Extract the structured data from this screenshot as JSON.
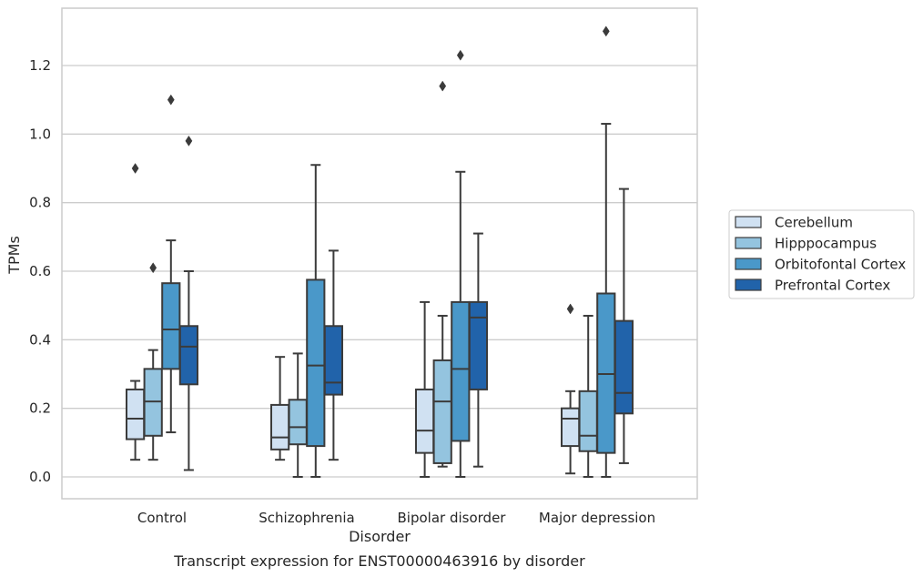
{
  "caption": "Transcript expression for ENST00000463916 by disorder",
  "chart_data": {
    "type": "box",
    "title": "",
    "xlabel": "Disorder",
    "ylabel": "TPMs",
    "ylim": [
      -0.06,
      1.37
    ],
    "yticks": [
      "0.0",
      "0.2",
      "0.4",
      "0.6",
      "0.8",
      "1.0",
      "1.2"
    ],
    "grid": "horizontal",
    "legend_position": "right",
    "categories": [
      "Control",
      "Schizophrenia",
      "Bipolar disorder",
      "Major depression"
    ],
    "series": [
      {
        "name": "Cerebellum",
        "color": "#d0e1f2",
        "boxes": [
          {
            "whislo": 0.05,
            "q1": 0.11,
            "med": 0.17,
            "q3": 0.255,
            "whishi": 0.28,
            "fliers": [
              0.9
            ]
          },
          {
            "whislo": 0.05,
            "q1": 0.08,
            "med": 0.115,
            "q3": 0.21,
            "whishi": 0.35,
            "fliers": []
          },
          {
            "whislo": 0.0,
            "q1": 0.07,
            "med": 0.135,
            "q3": 0.255,
            "whishi": 0.51,
            "fliers": []
          },
          {
            "whislo": 0.01,
            "q1": 0.09,
            "med": 0.17,
            "q3": 0.2,
            "whishi": 0.25,
            "fliers": [
              0.49
            ]
          }
        ]
      },
      {
        "name": "Hipppocampus",
        "color": "#94c4df",
        "boxes": [
          {
            "whislo": 0.05,
            "q1": 0.12,
            "med": 0.22,
            "q3": 0.315,
            "whishi": 0.37,
            "fliers": [
              0.61
            ]
          },
          {
            "whislo": 0.0,
            "q1": 0.095,
            "med": 0.145,
            "q3": 0.225,
            "whishi": 0.36,
            "fliers": []
          },
          {
            "whislo": 0.03,
            "q1": 0.04,
            "med": 0.22,
            "q3": 0.34,
            "whishi": 0.47,
            "fliers": [
              1.14
            ]
          },
          {
            "whislo": 0.0,
            "q1": 0.075,
            "med": 0.12,
            "q3": 0.25,
            "whishi": 0.47,
            "fliers": []
          }
        ]
      },
      {
        "name": "Orbitofontal Cortex",
        "color": "#4a98c9",
        "boxes": [
          {
            "whislo": 0.13,
            "q1": 0.315,
            "med": 0.43,
            "q3": 0.565,
            "whishi": 0.69,
            "fliers": [
              1.1
            ]
          },
          {
            "whislo": 0.0,
            "q1": 0.09,
            "med": 0.325,
            "q3": 0.575,
            "whishi": 0.91,
            "fliers": []
          },
          {
            "whislo": 0.0,
            "q1": 0.105,
            "med": 0.315,
            "q3": 0.51,
            "whishi": 0.89,
            "fliers": [
              1.23
            ]
          },
          {
            "whislo": 0.0,
            "q1": 0.07,
            "med": 0.3,
            "q3": 0.535,
            "whishi": 1.03,
            "fliers": [
              1.3
            ]
          }
        ]
      },
      {
        "name": "Prefrontal Cortex",
        "color": "#2163aa",
        "boxes": [
          {
            "whislo": 0.02,
            "q1": 0.27,
            "med": 0.38,
            "q3": 0.44,
            "whishi": 0.6,
            "fliers": [
              0.98
            ]
          },
          {
            "whislo": 0.05,
            "q1": 0.24,
            "med": 0.275,
            "q3": 0.44,
            "whishi": 0.66,
            "fliers": []
          },
          {
            "whislo": 0.03,
            "q1": 0.255,
            "med": 0.465,
            "q3": 0.51,
            "whishi": 0.71,
            "fliers": []
          },
          {
            "whislo": 0.04,
            "q1": 0.185,
            "med": 0.245,
            "q3": 0.455,
            "whishi": 0.84,
            "fliers": []
          }
        ]
      }
    ]
  }
}
